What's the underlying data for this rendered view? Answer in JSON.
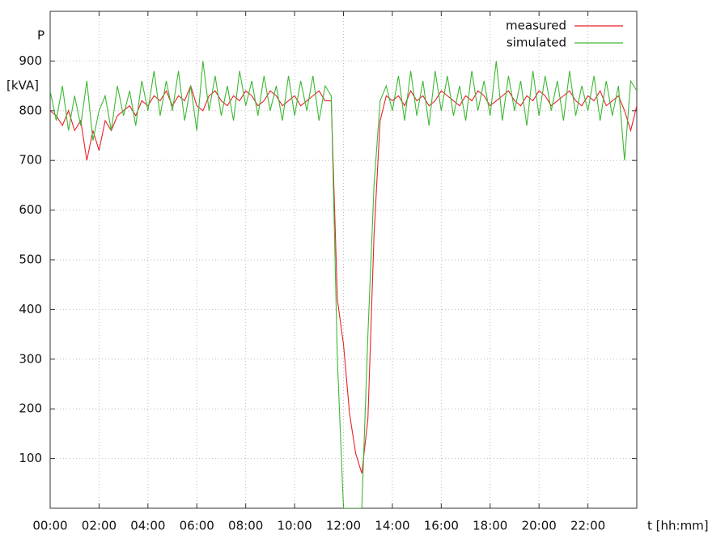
{
  "chart_data": {
    "type": "line",
    "y_label": "P",
    "y_unit": "[kVA]",
    "x_label": "t [hh:mm]",
    "xlim": [
      0,
      24
    ],
    "ylim": [
      0,
      1000
    ],
    "xticks": [
      {
        "value": 0,
        "label": "00:00"
      },
      {
        "value": 2,
        "label": "02:00"
      },
      {
        "value": 4,
        "label": "04:00"
      },
      {
        "value": 6,
        "label": "06:00"
      },
      {
        "value": 8,
        "label": "08:00"
      },
      {
        "value": 10,
        "label": "10:00"
      },
      {
        "value": 12,
        "label": "12:00"
      },
      {
        "value": 14,
        "label": "14:00"
      },
      {
        "value": 16,
        "label": "16:00"
      },
      {
        "value": 18,
        "label": "18:00"
      },
      {
        "value": 20,
        "label": "20:00"
      },
      {
        "value": 22,
        "label": "22:00"
      }
    ],
    "yticks": [
      100,
      200,
      300,
      400,
      500,
      600,
      700,
      800,
      900
    ],
    "grid": true,
    "legend": "top-right",
    "x": [
      0,
      0.25,
      0.5,
      0.75,
      1,
      1.25,
      1.5,
      1.75,
      2,
      2.25,
      2.5,
      2.75,
      3,
      3.25,
      3.5,
      3.75,
      4,
      4.25,
      4.5,
      4.75,
      5,
      5.25,
      5.5,
      5.75,
      6,
      6.25,
      6.5,
      6.75,
      7,
      7.25,
      7.5,
      7.75,
      8,
      8.25,
      8.5,
      8.75,
      9,
      9.25,
      9.5,
      9.75,
      10,
      10.25,
      10.5,
      10.75,
      11,
      11.25,
      11.5,
      11.75,
      12,
      12.25,
      12.5,
      12.75,
      13,
      13.25,
      13.5,
      13.75,
      14,
      14.25,
      14.5,
      14.75,
      15,
      15.25,
      15.5,
      15.75,
      16,
      16.25,
      16.5,
      16.75,
      17,
      17.25,
      17.5,
      17.75,
      18,
      18.25,
      18.5,
      18.75,
      19,
      19.25,
      19.5,
      19.75,
      20,
      20.25,
      20.5,
      20.75,
      21,
      21.25,
      21.5,
      21.75,
      22,
      22.25,
      22.5,
      22.75,
      23,
      23.25,
      23.5,
      23.75,
      24
    ],
    "series": [
      {
        "name": "measured",
        "color": "#e8202a",
        "values": [
          800,
          790,
          770,
          800,
          760,
          780,
          700,
          760,
          720,
          780,
          760,
          790,
          800,
          810,
          790,
          820,
          810,
          830,
          820,
          840,
          810,
          830,
          820,
          850,
          810,
          800,
          830,
          840,
          820,
          810,
          830,
          820,
          840,
          830,
          810,
          820,
          840,
          830,
          810,
          820,
          830,
          810,
          820,
          830,
          840,
          820,
          820,
          420,
          330,
          190,
          110,
          70,
          180,
          550,
          780,
          830,
          820,
          830,
          810,
          840,
          820,
          830,
          810,
          820,
          840,
          830,
          820,
          810,
          830,
          820,
          840,
          830,
          810,
          820,
          830,
          840,
          820,
          810,
          830,
          820,
          840,
          830,
          810,
          820,
          830,
          840,
          820,
          810,
          830,
          820,
          840,
          810,
          820,
          830,
          800,
          760,
          810
        ]
      },
      {
        "name": "simulated",
        "color": "#3cb832",
        "values": [
          840,
          780,
          850,
          760,
          830,
          770,
          860,
          740,
          800,
          830,
          760,
          850,
          790,
          840,
          770,
          860,
          800,
          880,
          790,
          860,
          800,
          880,
          780,
          850,
          760,
          900,
          800,
          870,
          790,
          850,
          780,
          880,
          810,
          860,
          790,
          870,
          800,
          850,
          780,
          870,
          790,
          860,
          800,
          870,
          780,
          850,
          830,
          300,
          0,
          0,
          0,
          0,
          350,
          650,
          820,
          850,
          800,
          870,
          780,
          880,
          790,
          860,
          770,
          880,
          800,
          870,
          790,
          850,
          780,
          880,
          800,
          860,
          790,
          900,
          780,
          870,
          800,
          860,
          770,
          880,
          790,
          870,
          800,
          860,
          780,
          880,
          790,
          850,
          800,
          870,
          780,
          860,
          790,
          850,
          700,
          860,
          840
        ]
      }
    ]
  }
}
